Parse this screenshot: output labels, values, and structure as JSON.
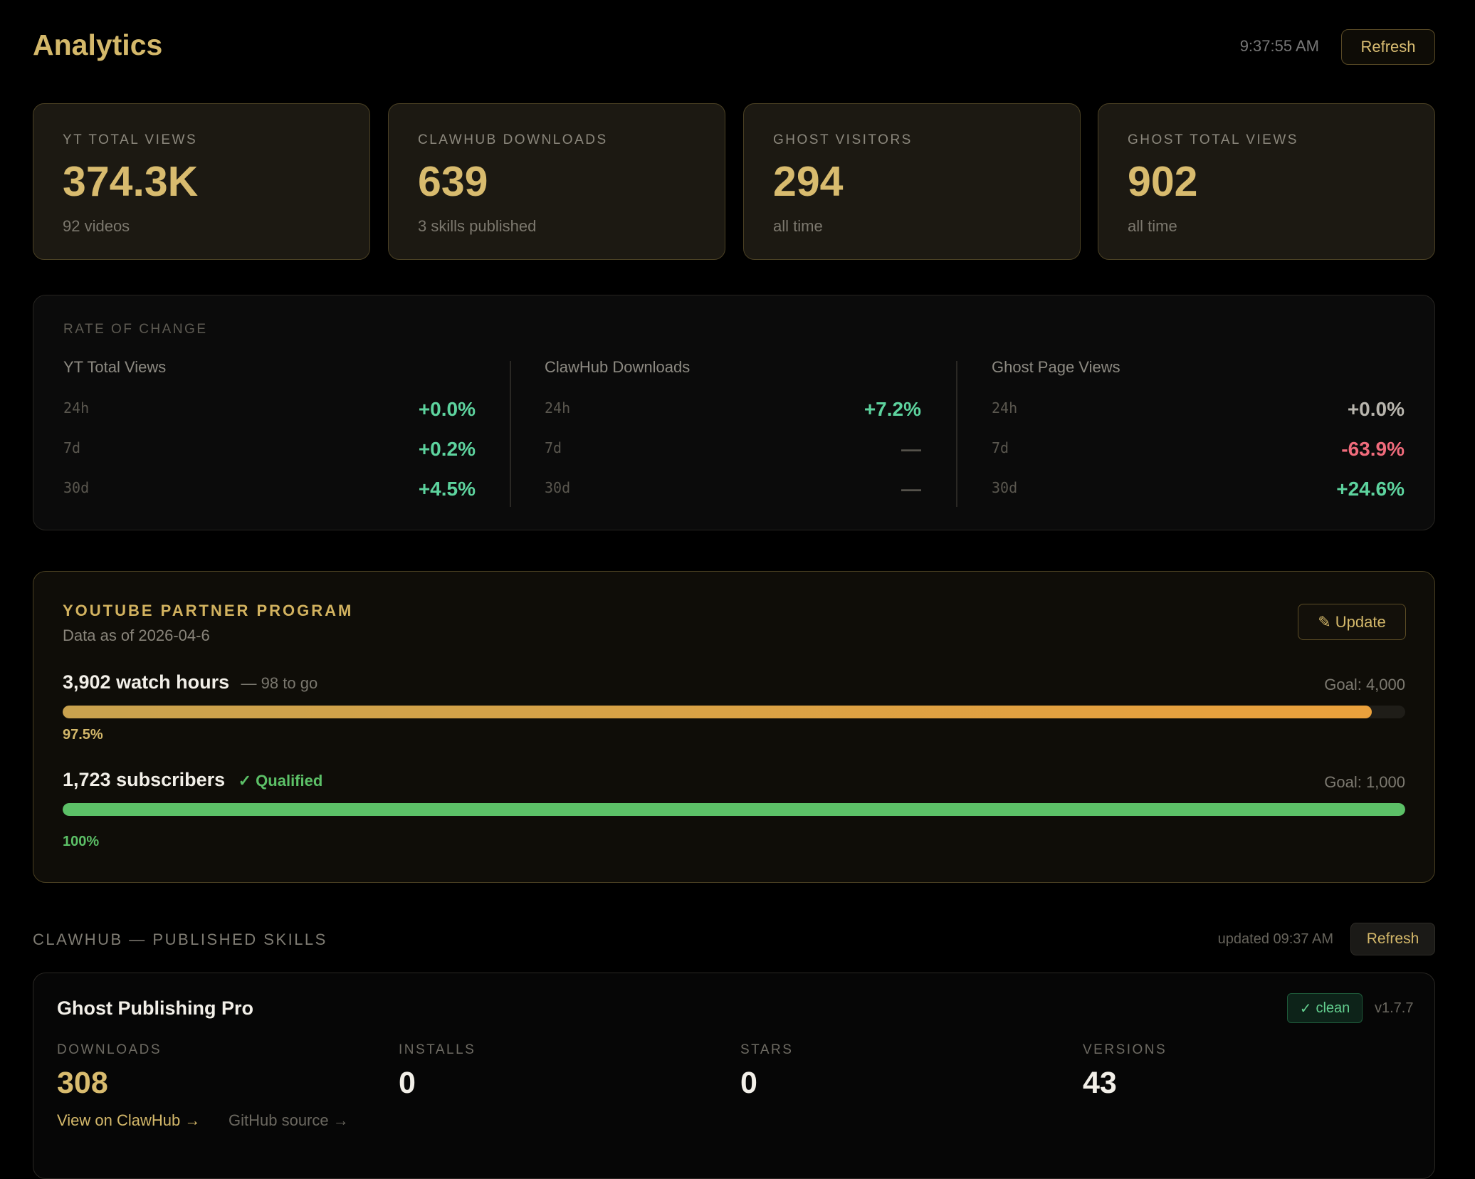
{
  "header": {
    "title": "Analytics",
    "time": "9:37:55 AM",
    "refresh_label": "Refresh"
  },
  "stats": [
    {
      "label": "YT TOTAL VIEWS",
      "value": "374.3K",
      "sub": "92 videos"
    },
    {
      "label": "CLAWHUB DOWNLOADS",
      "value": "639",
      "sub": "3 skills published"
    },
    {
      "label": "GHOST VISITORS",
      "value": "294",
      "sub": "all time"
    },
    {
      "label": "GHOST TOTAL VIEWS",
      "value": "902",
      "sub": "all time"
    }
  ],
  "rate_of_change": {
    "title": "RATE OF CHANGE",
    "columns": [
      {
        "name": "YT Total Views",
        "rows": [
          {
            "period": "24h",
            "value": "+0.0%",
            "tone": "positive"
          },
          {
            "period": "7d",
            "value": "+0.2%",
            "tone": "positive"
          },
          {
            "period": "30d",
            "value": "+4.5%",
            "tone": "positive"
          }
        ]
      },
      {
        "name": "ClawHub Downloads",
        "rows": [
          {
            "period": "24h",
            "value": "+7.2%",
            "tone": "positive"
          },
          {
            "period": "7d",
            "value": "—",
            "tone": "none"
          },
          {
            "period": "30d",
            "value": "—",
            "tone": "none"
          }
        ]
      },
      {
        "name": "Ghost Page Views",
        "rows": [
          {
            "period": "24h",
            "value": "+0.0%",
            "tone": "neutral"
          },
          {
            "period": "7d",
            "value": "-63.9%",
            "tone": "negative"
          },
          {
            "period": "30d",
            "value": "+24.6%",
            "tone": "positive"
          }
        ]
      }
    ]
  },
  "ypp": {
    "title": "YOUTUBE PARTNER PROGRAM",
    "subtitle": "Data as of 2026-04-6",
    "update_label": "Update",
    "watch": {
      "main": "3,902 watch hours",
      "extra": "— 98 to go",
      "goal": "Goal: 4,000",
      "percent_label": "97.5%",
      "progress": 0.975
    },
    "subs": {
      "main": "1,723 subscribers",
      "qualified": "Qualified",
      "goal": "Goal: 1,000",
      "percent_label": "100%",
      "progress": 1.0
    }
  },
  "skills_section": {
    "title": "CLAWHUB — PUBLISHED SKILLS",
    "updated": "updated 09:37 AM",
    "refresh_label": "Refresh"
  },
  "skill": {
    "name": "Ghost Publishing Pro",
    "badge": "clean",
    "version": "v1.7.7",
    "metrics": [
      {
        "label": "DOWNLOADS",
        "value": "308"
      },
      {
        "label": "INSTALLS",
        "value": "0"
      },
      {
        "label": "STARS",
        "value": "0"
      },
      {
        "label": "VERSIONS",
        "value": "43"
      }
    ],
    "link_clawhub": "View on ClawHub →",
    "link_github": "GitHub source →"
  },
  "colors": {
    "accent": "#d4b86a",
    "positive": "#5dd39e",
    "negative": "#f06b7b",
    "neutral": "#b8b5ad",
    "qualified": "#5cc067"
  }
}
